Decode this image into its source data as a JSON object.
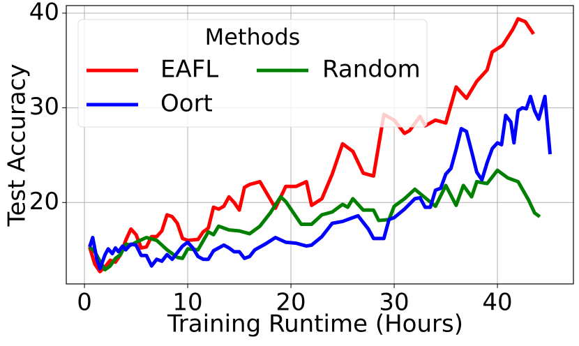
{
  "chart_data": {
    "type": "line",
    "xlabel": "Training Runtime (Hours)",
    "ylabel": "Test Accuracy",
    "legend_title": "Methods",
    "legend": "upper left",
    "grid": true,
    "xlim": [
      -1.76,
      47.36
    ],
    "xticks": [
      0,
      10,
      20,
      30,
      40
    ],
    "ylim": [
      11.4,
      40.8
    ],
    "yticks": [
      20,
      30,
      40
    ],
    "series": [
      {
        "name": "EAFL",
        "color": "#ff0000",
        "x": [
          0.5,
          1,
          1.5,
          2,
          2.5,
          3,
          3.5,
          4,
          4.5,
          5,
          5.5,
          6,
          6.5,
          7,
          7.5,
          8,
          8.5,
          9,
          9.5,
          10,
          11,
          11.5,
          12,
          12.5,
          13,
          13.5,
          14,
          14.5,
          15,
          15.5,
          16,
          17,
          18.5,
          19.5,
          20.5,
          21.5,
          22,
          23,
          24,
          25,
          26,
          27,
          28,
          29,
          30,
          31,
          31.5,
          32.5,
          33,
          34,
          35,
          36,
          37,
          38,
          39,
          39.5,
          40.5,
          41.5,
          42,
          42.7,
          43.5
        ],
        "values": [
          15.3,
          13.5,
          12.7,
          13.2,
          13.9,
          13.7,
          14.5,
          16,
          17.2,
          16.6,
          15.2,
          15.3,
          16.4,
          16.4,
          17,
          18.7,
          18.5,
          17.8,
          16.2,
          16,
          16.1,
          16.9,
          17.3,
          19.5,
          19.3,
          19.6,
          20.6,
          20,
          19.2,
          21.6,
          21.9,
          22.2,
          19.4,
          21.7,
          21.7,
          22.2,
          19.7,
          20.4,
          23,
          26.2,
          25.4,
          23.1,
          22.8,
          29.3,
          28.7,
          27.3,
          27.6,
          29.1,
          28.1,
          28.7,
          28.4,
          32.2,
          31,
          32.8,
          34,
          35.9,
          36.6,
          38.3,
          39.4,
          39.1,
          37.8
        ]
      },
      {
        "name": "Random",
        "color": "#008000",
        "x": [
          0.5,
          1,
          1.5,
          2,
          2.5,
          3,
          3.5,
          4,
          4.5,
          5,
          6,
          7,
          8,
          9,
          9.5,
          10,
          11,
          12,
          12.5,
          13,
          14,
          15,
          16,
          17,
          18,
          19,
          19.5,
          20,
          21,
          22,
          23,
          24,
          25,
          25.5,
          26,
          27,
          28,
          28.5,
          29.5,
          30,
          31,
          32,
          33,
          34,
          35,
          36,
          36.7,
          37.5,
          38,
          39,
          40,
          41,
          42,
          43,
          43.6,
          44.1
        ],
        "values": [
          15.3,
          14.8,
          13.8,
          12.9,
          13.3,
          14.1,
          14.5,
          15.6,
          15.5,
          15.8,
          16.3,
          16,
          15,
          14.2,
          14.1,
          15.1,
          15,
          16.9,
          16.6,
          17.5,
          17.1,
          17,
          16.7,
          17.5,
          18.9,
          20.6,
          20.1,
          19.3,
          17.7,
          17.7,
          18.7,
          19,
          19.8,
          19.5,
          20.4,
          19.2,
          19.2,
          18.1,
          18.2,
          19.6,
          20.4,
          21.4,
          20.5,
          19.6,
          21.8,
          19.7,
          21.8,
          20.6,
          22.2,
          22,
          23.4,
          22.6,
          22.2,
          20.3,
          18.9,
          18.5
        ]
      },
      {
        "name": "Oort",
        "color": "#0000ff",
        "x": [
          0.5,
          0.8,
          1.2,
          1.5,
          2,
          2.3,
          2.7,
          3,
          3.3,
          3.7,
          4,
          4.5,
          5,
          5.5,
          6,
          6.5,
          7,
          7.5,
          8,
          8.5,
          9,
          9.5,
          10,
          10.5,
          11,
          11.5,
          12,
          12.5,
          13,
          13.5,
          14,
          14.5,
          15,
          15.5,
          16,
          16.5,
          17.5,
          18.5,
          19.5,
          20.5,
          21.5,
          22,
          23,
          24,
          25,
          26.5,
          27.5,
          28,
          29,
          29.5,
          30,
          31,
          32,
          32.5,
          33,
          33.5,
          34,
          34.5,
          35,
          35.5,
          36,
          36.5,
          37,
          37.5,
          38,
          38.5,
          39,
          39.5,
          40,
          40.4,
          40.8,
          41.3,
          41.6,
          42,
          42.4,
          42.8,
          43.2,
          43.6,
          44,
          44.3,
          44.6,
          45.1
        ],
        "values": [
          15.3,
          16.3,
          14,
          13,
          14.5,
          15.1,
          14.6,
          15.2,
          14.8,
          15.4,
          15,
          15.6,
          15.5,
          14.4,
          14.4,
          13.3,
          14,
          13.8,
          14.5,
          14,
          14.7,
          15.4,
          15.8,
          15.2,
          14.3,
          14,
          14,
          14.9,
          15.2,
          15.5,
          15.2,
          14.8,
          14.8,
          14.1,
          14.3,
          15,
          15.6,
          16.3,
          15.8,
          15.7,
          15.4,
          15.5,
          16.4,
          17.8,
          18,
          18.6,
          17.2,
          16.2,
          16.2,
          18.2,
          18.4,
          19.3,
          20.4,
          20.5,
          19.5,
          19.5,
          21.3,
          21.5,
          23,
          23.6,
          25.6,
          27.8,
          27.5,
          25.4,
          23.2,
          22.4,
          24.2,
          25.7,
          26.3,
          26.1,
          29.2,
          28.5,
          26.3,
          29.7,
          30,
          29.9,
          31.2,
          29.7,
          28.8,
          30,
          31.2,
          25.1
        ]
      }
    ]
  }
}
